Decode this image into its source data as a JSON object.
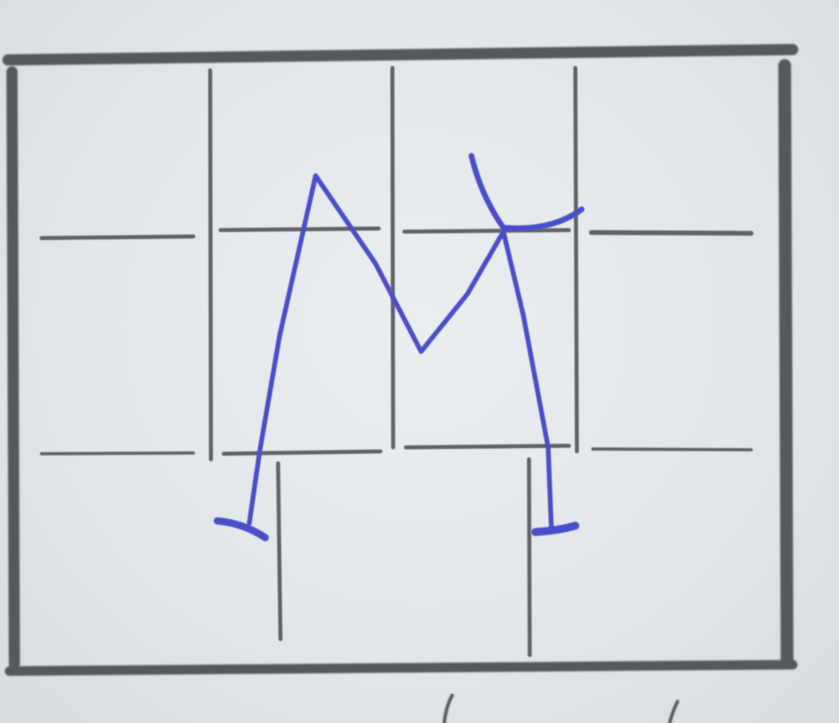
{
  "image": {
    "subject": "letter-m-drawn-in-writing-grid",
    "letter": "М",
    "ink_color": "#4a50c8",
    "grid_color": "#5a5d60",
    "paper_color": "#e6eaec"
  }
}
